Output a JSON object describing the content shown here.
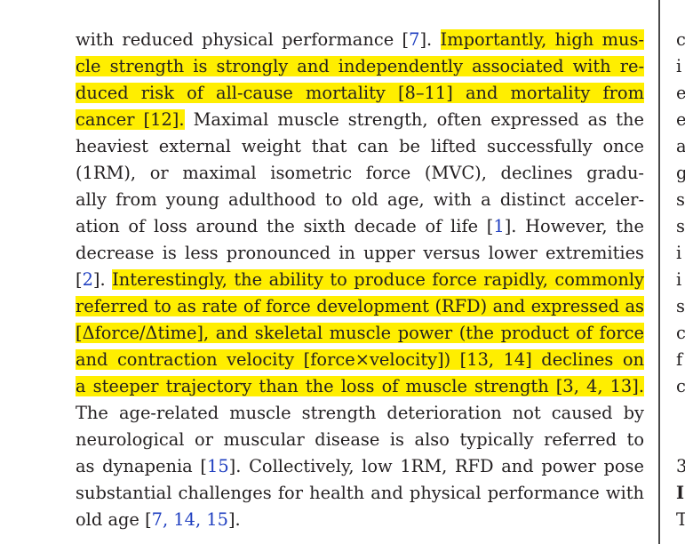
{
  "main_column": {
    "lines": [
      [
        {
          "t": "with reduced physical performance "
        },
        {
          "t": "[",
          "k": "plain"
        },
        {
          "t": "7",
          "k": "cite"
        },
        {
          "t": "]. "
        },
        {
          "t": "Importantly, high mus-",
          "k": "hl"
        }
      ],
      [
        {
          "t": "cle strength is strongly and independently associated with re-",
          "k": "hl"
        }
      ],
      [
        {
          "t": "duced risk of all-cause mortality [8–11] and mortality from",
          "k": "hl"
        }
      ],
      [
        {
          "t": "cancer [12].",
          "k": "hl"
        },
        {
          "t": " Maximal muscle strength, often expressed as the"
        }
      ],
      [
        {
          "t": "heaviest external weight that can be lifted successfully once"
        }
      ],
      [
        {
          "t": "(1RM), or maximal isometric force (MVC), declines gradu-"
        }
      ],
      [
        {
          "t": "ally from young adulthood to old age, with a distinct acceler-"
        }
      ],
      [
        {
          "t": "ation of loss around the sixth decade of life ["
        },
        {
          "t": "1",
          "k": "cite"
        },
        {
          "t": "]. However, the"
        }
      ],
      [
        {
          "t": "decrease is less pronounced in upper versus lower extremities"
        }
      ],
      [
        {
          "t": "["
        },
        {
          "t": "2",
          "k": "cite"
        },
        {
          "t": "]. "
        },
        {
          "t": "Interestingly, the ability to produce force rapidly, commonly",
          "k": "hl"
        }
      ],
      [
        {
          "t": "referred to as rate of force development (RFD) and expressed as",
          "k": "hl"
        }
      ],
      [
        {
          "t": "[Δforce/Δtime], and skeletal muscle power (the product of force",
          "k": "hl"
        }
      ],
      [
        {
          "t": "and contraction velocity [force×velocity]) [13, 14] declines on",
          "k": "hl"
        }
      ],
      [
        {
          "t": "a steeper trajectory than the loss of muscle strength [3, 4, 13].",
          "k": "hl"
        }
      ],
      [
        {
          "t": "The age-related muscle strength deterioration not caused by"
        }
      ],
      [
        {
          "t": "neurological or muscular disease is also typically referred to"
        }
      ],
      [
        {
          "t": "as dynapenia ["
        },
        {
          "t": "15",
          "k": "cite"
        },
        {
          "t": "]. Collectively, low 1RM, RFD and power pose"
        }
      ],
      [
        {
          "t": "substantial challenges for health and physical performance with"
        }
      ],
      [
        {
          "t": "old age ["
        },
        {
          "t": "7, 14, 15",
          "k": "cite"
        },
        {
          "t": "]."
        }
      ]
    ]
  },
  "right_column": {
    "fragments": [
      "c",
      "i",
      "e",
      "e",
      "a",
      "g",
      "s",
      "s",
      "i",
      "i",
      "s",
      "c",
      "f",
      "c",
      "",
      "",
      "3",
      "I",
      "T"
    ]
  },
  "colors": {
    "highlight": "#ffee00",
    "citation": "#1f3fc0",
    "text": "#231f20"
  }
}
